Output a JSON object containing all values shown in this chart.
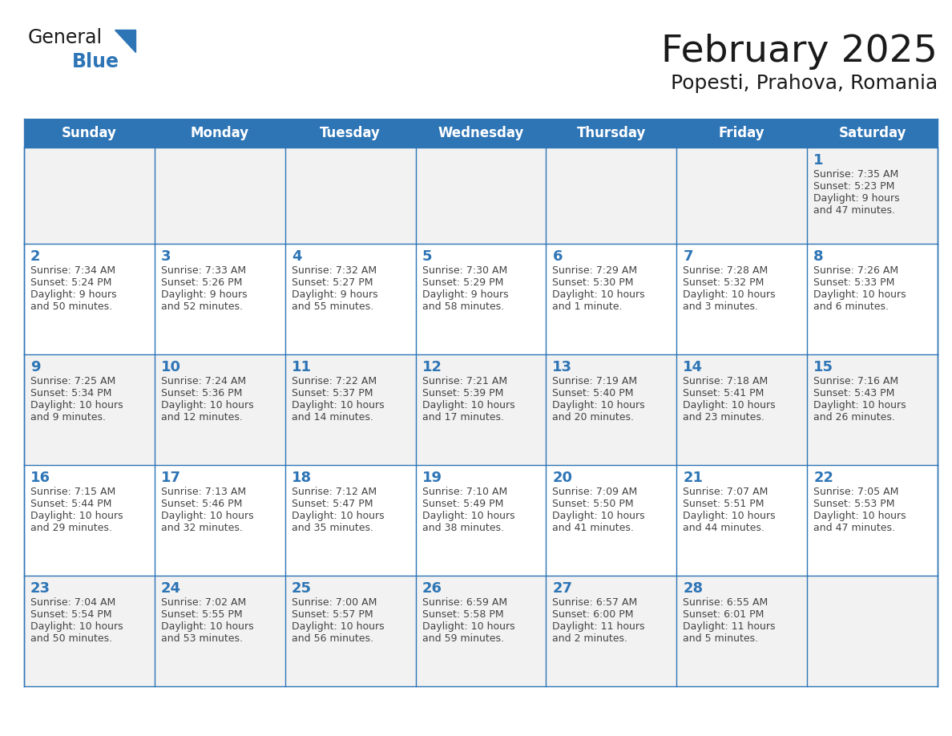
{
  "title": "February 2025",
  "subtitle": "Popesti, Prahova, Romania",
  "header_bg": "#2E75B6",
  "header_text_color": "#FFFFFF",
  "cell_bg_odd": "#F2F2F2",
  "cell_bg_even": "#FFFFFF",
  "cell_border_color": "#2E75B6",
  "day_number_color": "#2E75B6",
  "info_text_color": "#444444",
  "days_of_week": [
    "Sunday",
    "Monday",
    "Tuesday",
    "Wednesday",
    "Thursday",
    "Friday",
    "Saturday"
  ],
  "calendar_data": [
    [
      null,
      null,
      null,
      null,
      null,
      null,
      {
        "day": "1",
        "sunrise": "7:35 AM",
        "sunset": "5:23 PM",
        "daylight_line1": "Daylight: 9 hours",
        "daylight_line2": "and 47 minutes."
      }
    ],
    [
      {
        "day": "2",
        "sunrise": "7:34 AM",
        "sunset": "5:24 PM",
        "daylight_line1": "Daylight: 9 hours",
        "daylight_line2": "and 50 minutes."
      },
      {
        "day": "3",
        "sunrise": "7:33 AM",
        "sunset": "5:26 PM",
        "daylight_line1": "Daylight: 9 hours",
        "daylight_line2": "and 52 minutes."
      },
      {
        "day": "4",
        "sunrise": "7:32 AM",
        "sunset": "5:27 PM",
        "daylight_line1": "Daylight: 9 hours",
        "daylight_line2": "and 55 minutes."
      },
      {
        "day": "5",
        "sunrise": "7:30 AM",
        "sunset": "5:29 PM",
        "daylight_line1": "Daylight: 9 hours",
        "daylight_line2": "and 58 minutes."
      },
      {
        "day": "6",
        "sunrise": "7:29 AM",
        "sunset": "5:30 PM",
        "daylight_line1": "Daylight: 10 hours",
        "daylight_line2": "and 1 minute."
      },
      {
        "day": "7",
        "sunrise": "7:28 AM",
        "sunset": "5:32 PM",
        "daylight_line1": "Daylight: 10 hours",
        "daylight_line2": "and 3 minutes."
      },
      {
        "day": "8",
        "sunrise": "7:26 AM",
        "sunset": "5:33 PM",
        "daylight_line1": "Daylight: 10 hours",
        "daylight_line2": "and 6 minutes."
      }
    ],
    [
      {
        "day": "9",
        "sunrise": "7:25 AM",
        "sunset": "5:34 PM",
        "daylight_line1": "Daylight: 10 hours",
        "daylight_line2": "and 9 minutes."
      },
      {
        "day": "10",
        "sunrise": "7:24 AM",
        "sunset": "5:36 PM",
        "daylight_line1": "Daylight: 10 hours",
        "daylight_line2": "and 12 minutes."
      },
      {
        "day": "11",
        "sunrise": "7:22 AM",
        "sunset": "5:37 PM",
        "daylight_line1": "Daylight: 10 hours",
        "daylight_line2": "and 14 minutes."
      },
      {
        "day": "12",
        "sunrise": "7:21 AM",
        "sunset": "5:39 PM",
        "daylight_line1": "Daylight: 10 hours",
        "daylight_line2": "and 17 minutes."
      },
      {
        "day": "13",
        "sunrise": "7:19 AM",
        "sunset": "5:40 PM",
        "daylight_line1": "Daylight: 10 hours",
        "daylight_line2": "and 20 minutes."
      },
      {
        "day": "14",
        "sunrise": "7:18 AM",
        "sunset": "5:41 PM",
        "daylight_line1": "Daylight: 10 hours",
        "daylight_line2": "and 23 minutes."
      },
      {
        "day": "15",
        "sunrise": "7:16 AM",
        "sunset": "5:43 PM",
        "daylight_line1": "Daylight: 10 hours",
        "daylight_line2": "and 26 minutes."
      }
    ],
    [
      {
        "day": "16",
        "sunrise": "7:15 AM",
        "sunset": "5:44 PM",
        "daylight_line1": "Daylight: 10 hours",
        "daylight_line2": "and 29 minutes."
      },
      {
        "day": "17",
        "sunrise": "7:13 AM",
        "sunset": "5:46 PM",
        "daylight_line1": "Daylight: 10 hours",
        "daylight_line2": "and 32 minutes."
      },
      {
        "day": "18",
        "sunrise": "7:12 AM",
        "sunset": "5:47 PM",
        "daylight_line1": "Daylight: 10 hours",
        "daylight_line2": "and 35 minutes."
      },
      {
        "day": "19",
        "sunrise": "7:10 AM",
        "sunset": "5:49 PM",
        "daylight_line1": "Daylight: 10 hours",
        "daylight_line2": "and 38 minutes."
      },
      {
        "day": "20",
        "sunrise": "7:09 AM",
        "sunset": "5:50 PM",
        "daylight_line1": "Daylight: 10 hours",
        "daylight_line2": "and 41 minutes."
      },
      {
        "day": "21",
        "sunrise": "7:07 AM",
        "sunset": "5:51 PM",
        "daylight_line1": "Daylight: 10 hours",
        "daylight_line2": "and 44 minutes."
      },
      {
        "day": "22",
        "sunrise": "7:05 AM",
        "sunset": "5:53 PM",
        "daylight_line1": "Daylight: 10 hours",
        "daylight_line2": "and 47 minutes."
      }
    ],
    [
      {
        "day": "23",
        "sunrise": "7:04 AM",
        "sunset": "5:54 PM",
        "daylight_line1": "Daylight: 10 hours",
        "daylight_line2": "and 50 minutes."
      },
      {
        "day": "24",
        "sunrise": "7:02 AM",
        "sunset": "5:55 PM",
        "daylight_line1": "Daylight: 10 hours",
        "daylight_line2": "and 53 minutes."
      },
      {
        "day": "25",
        "sunrise": "7:00 AM",
        "sunset": "5:57 PM",
        "daylight_line1": "Daylight: 10 hours",
        "daylight_line2": "and 56 minutes."
      },
      {
        "day": "26",
        "sunrise": "6:59 AM",
        "sunset": "5:58 PM",
        "daylight_line1": "Daylight: 10 hours",
        "daylight_line2": "and 59 minutes."
      },
      {
        "day": "27",
        "sunrise": "6:57 AM",
        "sunset": "6:00 PM",
        "daylight_line1": "Daylight: 11 hours",
        "daylight_line2": "and 2 minutes."
      },
      {
        "day": "28",
        "sunrise": "6:55 AM",
        "sunset": "6:01 PM",
        "daylight_line1": "Daylight: 11 hours",
        "daylight_line2": "and 5 minutes."
      },
      null
    ]
  ],
  "logo_text_general": "General",
  "logo_text_blue": "Blue",
  "logo_triangle_color": "#2E75B6",
  "title_fontsize": 34,
  "subtitle_fontsize": 18,
  "header_fontsize": 12,
  "day_number_fontsize": 13,
  "info_fontsize": 9.0
}
